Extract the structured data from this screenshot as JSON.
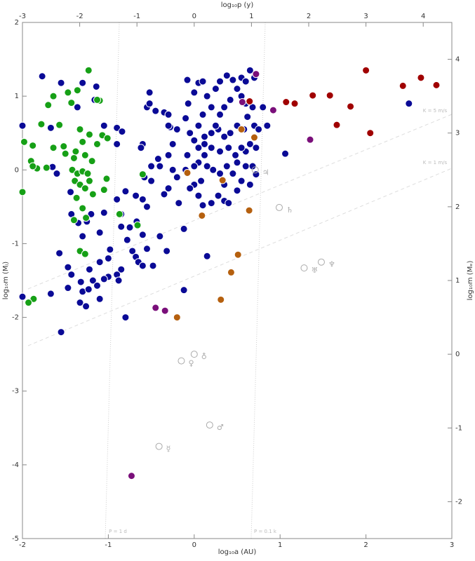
{
  "chart_data": {
    "type": "scatter",
    "xlabel": "log₁₀a (AU)",
    "ylabel": "log₁₀m (Mⱼ)",
    "x2label": "log₁₀p (y)",
    "y2label": "log₁₀m (Mₑ)",
    "xlim": [
      -2,
      3
    ],
    "xticks": [
      -2,
      -1,
      0,
      1,
      2,
      3
    ],
    "ylim": [
      -5,
      2
    ],
    "yticks": [
      -5,
      -4,
      -3,
      -2,
      -1,
      0,
      1,
      2
    ],
    "x2lim": [
      -3,
      4.5
    ],
    "x2ticks": [
      -3,
      -2,
      -1,
      0,
      1,
      2,
      3,
      4
    ],
    "y2lim": [
      -2.5,
      4.5
    ],
    "y2ticks": [
      -2,
      -1,
      0,
      1,
      2,
      3,
      4
    ],
    "grid": false,
    "annotations": [
      "K = 5 m/s",
      "K = 1 m/s",
      "P = 1 d",
      "P = 0.1 k"
    ],
    "series": [
      {
        "color": "#0a0a96",
        "x": [
          -1.77,
          -1.55,
          -1.3,
          -1.36,
          -1.14,
          -1.16,
          -1.05,
          -0.9,
          -0.84,
          -2.0,
          -1.67,
          -1.65,
          -1.6,
          -1.44,
          -1.43,
          -1.35,
          -1.2,
          -1.25,
          -1.3,
          -1.1,
          -1.05,
          -0.9,
          -0.8,
          -0.85,
          -0.85,
          -0.75,
          -0.67,
          -0.55,
          -0.6,
          -0.55,
          -0.72,
          -0.78,
          -0.98,
          -1.0,
          -1.1,
          -0.68,
          -0.65,
          -0.85,
          -0.9,
          -1.0,
          -1.05,
          -0.88,
          -0.6,
          -0.48,
          -0.32,
          -0.4,
          -0.6,
          -0.5,
          -0.68,
          -0.5,
          -0.58,
          -0.35,
          -0.18,
          -0.12,
          -1.57,
          -1.47,
          -1.43,
          -1.47,
          -1.32,
          -1.3,
          -1.33,
          -1.26,
          -1.22,
          -1.18,
          -1.13,
          -1.1,
          -1.23,
          -1.55,
          -1.67,
          -0.8,
          -0.12,
          0.15,
          -2.0,
          -0.9,
          -0.6,
          -0.62,
          -0.55,
          -0.52,
          -0.52,
          -0.45,
          -0.35,
          -0.3,
          -0.28,
          -0.2,
          -0.25,
          -0.3,
          -0.42,
          -0.3,
          -0.25,
          -0.3,
          -0.2,
          -0.4,
          -0.1,
          -0.08,
          -0.05,
          -0.1,
          -0.07,
          -0.08,
          0.0,
          0.05,
          0.1,
          0.15,
          0.2,
          0.25,
          0.3,
          0.38,
          0.45,
          0.5,
          0.55,
          0.6,
          0.65,
          0.7,
          0.55,
          0.42,
          0.35,
          0.3,
          0.1,
          0.05,
          0.0,
          0.05,
          0.12,
          0.2,
          0.28,
          0.35,
          0.42,
          0.5,
          0.58,
          0.62,
          0.68,
          0.7,
          0.72,
          0.65,
          0.6,
          0.55,
          0.48,
          0.4,
          0.3,
          0.2,
          0.12,
          0.05,
          0.0,
          0.0,
          0.08,
          0.15,
          0.22,
          0.3,
          0.38,
          0.45,
          0.5,
          0.55,
          0.6,
          0.65,
          0.35,
          0.28,
          0.2,
          0.1,
          0.05,
          -0.05,
          0.35,
          0.4,
          0.5,
          0.75,
          0.8,
          0.72,
          0.85,
          1.06,
          2.5,
          0.12,
          0.6,
          0.25,
          0.68
        ],
        "values": [
          1.27,
          1.18,
          1.18,
          0.85,
          1.13,
          0.95,
          0.6,
          0.57,
          0.52,
          0.6,
          0.57,
          0.04,
          -0.05,
          -0.3,
          -0.6,
          -0.72,
          -0.6,
          -0.7,
          -0.9,
          -0.85,
          -0.58,
          -0.4,
          -0.29,
          -0.6,
          -0.77,
          -0.78,
          -0.7,
          -0.5,
          -0.88,
          -1.07,
          -1.1,
          -0.95,
          -1.08,
          -1.2,
          -1.25,
          -1.18,
          -1.25,
          -1.35,
          -1.42,
          -1.45,
          -1.48,
          -1.5,
          -1.3,
          -1.3,
          -1.1,
          -0.9,
          -0.4,
          -0.15,
          -0.35,
          0.05,
          -0.1,
          -0.33,
          -0.45,
          -0.8,
          -1.13,
          -1.32,
          -1.42,
          -1.6,
          -1.52,
          -1.65,
          -1.8,
          -1.85,
          -1.35,
          -1.5,
          -1.57,
          -1.75,
          -1.62,
          -2.2,
          -1.68,
          -2.0,
          -1.63,
          -1.17,
          -1.72,
          0.35,
          0.35,
          0.3,
          0.85,
          1.05,
          0.9,
          0.8,
          0.78,
          0.75,
          0.58,
          0.55,
          0.35,
          0.6,
          0.15,
          0.2,
          0.0,
          -0.25,
          -0.1,
          0.05,
          0.0,
          0.2,
          0.5,
          0.7,
          0.9,
          1.22,
          1.05,
          1.18,
          1.2,
          1.0,
          0.85,
          1.1,
          1.2,
          1.28,
          1.22,
          1.1,
          1.25,
          1.2,
          1.35,
          1.25,
          1.0,
          0.95,
          0.85,
          0.75,
          0.75,
          0.6,
          0.4,
          0.3,
          0.45,
          0.5,
          0.55,
          0.45,
          0.5,
          0.6,
          0.55,
          0.72,
          0.85,
          0.6,
          0.3,
          0.35,
          0.25,
          0.3,
          0.2,
          0.3,
          0.25,
          0.3,
          0.2,
          0.1,
          0.05,
          -0.2,
          -0.15,
          0.05,
          0.0,
          -0.05,
          0.05,
          -0.05,
          0.1,
          -0.15,
          0.05,
          -0.2,
          -0.2,
          -0.35,
          -0.45,
          -0.48,
          -0.35,
          -0.25,
          -0.42,
          -0.45,
          -0.28,
          0.55,
          0.85,
          -0.06,
          0.6,
          0.22,
          0.9,
          0.35,
          0.9,
          0.6,
          0.05
        ]
      },
      {
        "color": "#16a016",
        "x": [
          -1.47,
          -1.64,
          -1.7,
          -1.43,
          -1.36,
          -1.23,
          -1.1,
          -1.78,
          -1.57,
          -1.88,
          -1.64,
          -1.52,
          -1.38,
          -1.33,
          -1.22,
          -1.3,
          -1.07,
          -1.01,
          -1.13,
          -1.4,
          -1.27,
          -1.19,
          -1.9,
          -1.83,
          -1.88,
          -1.72,
          -1.42,
          -1.36,
          -1.3,
          -1.24,
          -1.39,
          -1.33,
          -1.27,
          -1.22,
          -1.18,
          -1.02,
          -1.05,
          -1.37,
          -1.3,
          -1.4,
          -1.26,
          -0.87,
          -1.33,
          -1.27,
          -1.98,
          -2.0,
          -1.87,
          -1.93,
          -0.6,
          -0.66,
          -1.13,
          -1.5
        ],
        "values": [
          1.05,
          1.0,
          0.88,
          0.91,
          1.08,
          1.35,
          0.94,
          0.62,
          0.61,
          0.33,
          0.3,
          0.32,
          0.25,
          0.55,
          0.48,
          0.38,
          0.47,
          0.43,
          0.35,
          0.16,
          0.2,
          0.12,
          0.12,
          0.02,
          0.05,
          0.03,
          0.0,
          -0.05,
          -0.02,
          -0.05,
          -0.15,
          -0.2,
          -0.25,
          -0.15,
          -0.33,
          -0.12,
          -0.27,
          -0.38,
          -0.52,
          -0.68,
          -0.65,
          -0.6,
          -1.1,
          -1.14,
          0.38,
          -0.3,
          -1.75,
          -1.8,
          -0.06,
          -0.75,
          0.95,
          0.22
        ]
      },
      {
        "color": "#a00000",
        "x": [
          0.645,
          1.07,
          1.17,
          1.38,
          1.58,
          1.82,
          2.0,
          1.66,
          2.05,
          2.43,
          2.64,
          2.82
        ],
        "values": [
          0.93,
          0.92,
          0.9,
          1.01,
          1.01,
          0.86,
          1.35,
          0.61,
          0.5,
          1.14,
          1.25,
          1.15
        ]
      },
      {
        "color": "#7a0f7a",
        "x": [
          0.72,
          0.92,
          1.35,
          0.56,
          -0.45,
          -0.34,
          -0.73
        ],
        "values": [
          1.3,
          0.81,
          0.41,
          0.92,
          -1.87,
          -1.91,
          -4.15
        ]
      },
      {
        "color": "#b5600f",
        "x": [
          -0.08,
          0.7,
          0.55,
          0.09,
          0.64,
          0.51,
          0.43,
          0.31,
          -0.2,
          0.33
        ],
        "values": [
          -0.04,
          0.44,
          0.55,
          -0.62,
          -0.55,
          -1.15,
          -1.39,
          -1.76,
          -2.0,
          -0.14
        ]
      }
    ],
    "solar_system": {
      "labels": [
        "☿",
        "♀",
        "♁",
        "♂",
        "♃",
        "♄",
        "♅",
        "♆"
      ],
      "x": [
        -0.41,
        -0.15,
        0.0,
        0.18,
        0.71,
        0.99,
        1.28,
        1.48
      ],
      "values": [
        -3.75,
        -2.59,
        -2.5,
        -3.46,
        0.0,
        -0.51,
        -1.33,
        -1.25
      ]
    }
  }
}
